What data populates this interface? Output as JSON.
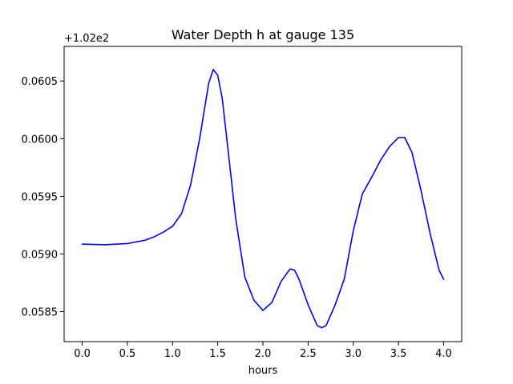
{
  "chart_data": {
    "type": "line",
    "title": "Water Depth h at gauge 135",
    "xlabel": "hours",
    "ylabel": "",
    "y_offset_label": "+1.02e2",
    "y_offset": 102,
    "xlim": [
      -0.2,
      4.2
    ],
    "ylim": [
      102.05824,
      102.0608
    ],
    "x_ticks": [
      0.0,
      0.5,
      1.0,
      1.5,
      2.0,
      2.5,
      3.0,
      3.5,
      4.0
    ],
    "x_tick_labels": [
      "0.0",
      "0.5",
      "1.0",
      "1.5",
      "2.0",
      "2.5",
      "3.0",
      "3.5",
      "4.0"
    ],
    "y_ticks": [
      0.0585,
      0.059,
      0.0595,
      0.06,
      0.0605
    ],
    "y_tick_labels": [
      "0.0585",
      "0.0590",
      "0.0595",
      "0.0600",
      "0.0605"
    ],
    "grid": false,
    "series": [
      {
        "color": "#0000ff",
        "x": [
          0.0,
          0.25,
          0.5,
          0.7,
          0.8,
          0.9,
          1.0,
          1.1,
          1.2,
          1.3,
          1.4,
          1.45,
          1.5,
          1.55,
          1.6,
          1.7,
          1.8,
          1.9,
          2.0,
          2.1,
          2.2,
          2.3,
          2.35,
          2.4,
          2.5,
          2.6,
          2.65,
          2.7,
          2.8,
          2.9,
          3.0,
          3.1,
          3.2,
          3.3,
          3.4,
          3.5,
          3.57,
          3.65,
          3.75,
          3.85,
          3.95,
          4.0
        ],
        "y": [
          102.059085,
          102.05908,
          102.05909,
          102.05912,
          102.05915,
          102.05919,
          102.05924,
          102.05935,
          102.0596,
          102.06,
          102.06048,
          102.0606,
          102.06055,
          102.06035,
          102.06,
          102.0593,
          102.0588,
          102.0586,
          102.05851,
          102.05858,
          102.05876,
          102.05887,
          102.05886,
          102.05878,
          102.05856,
          102.05838,
          102.05836,
          102.05838,
          102.05856,
          102.05878,
          102.0592,
          102.05952,
          102.05966,
          102.05981,
          102.05993,
          102.06001,
          102.06001,
          102.05988,
          102.05955,
          102.05918,
          102.05886,
          102.05878
        ]
      }
    ]
  }
}
